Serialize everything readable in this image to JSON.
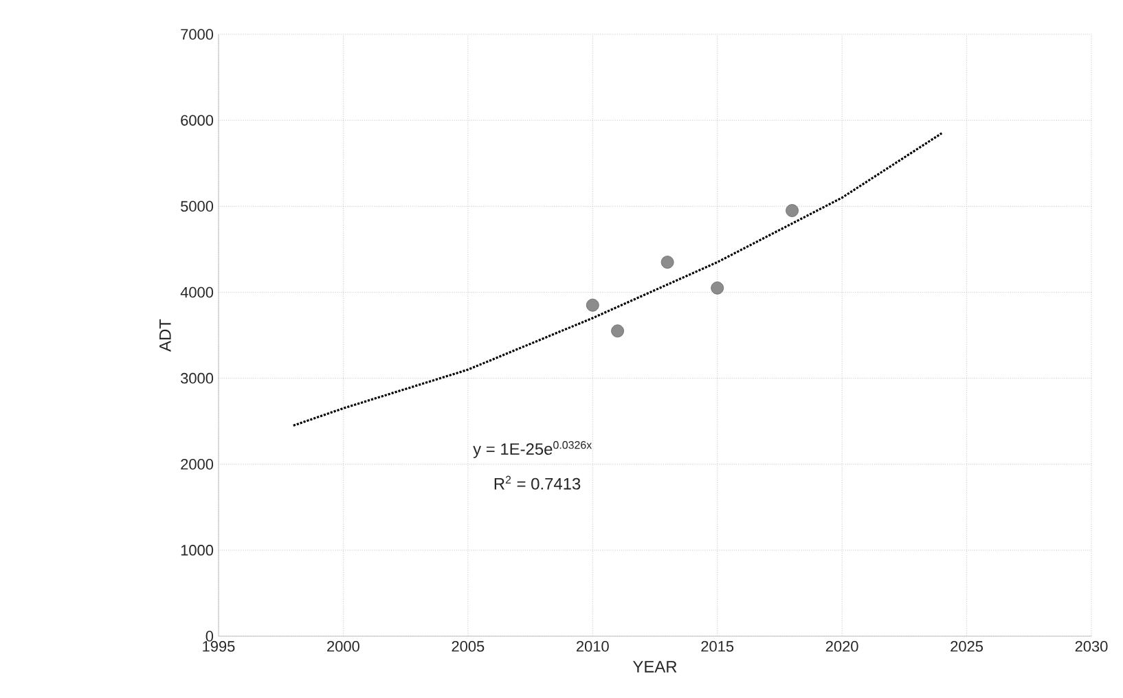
{
  "chart_data": {
    "type": "scatter",
    "xlabel": "YEAR",
    "ylabel": "ADT",
    "xlim": [
      1995,
      2030
    ],
    "ylim": [
      0,
      7000
    ],
    "xticks": [
      1995,
      2000,
      2005,
      2010,
      2015,
      2020,
      2025,
      2030
    ],
    "yticks": [
      0,
      1000,
      2000,
      3000,
      4000,
      5000,
      6000,
      7000
    ],
    "grid": true,
    "annotations": [
      "y = 1E-25e$^{0.0326x}$",
      "R$^{2}$ = 0.7413"
    ],
    "series": [
      {
        "color": "#8c8c8c",
        "marker": "circle",
        "x": [
          2010,
          2011,
          2013,
          2015,
          2018
        ],
        "values": [
          3850,
          3550,
          4350,
          4050,
          4950
        ]
      },
      {
        "type": "line",
        "color": "#000000",
        "marker": "none",
        "line_style": "dotted",
        "x": [
          1998,
          2000,
          2005,
          2010,
          2015,
          2020,
          2024
        ],
        "values": [
          2450,
          2650,
          3100,
          3700,
          4350,
          5100,
          5850
        ]
      }
    ]
  }
}
